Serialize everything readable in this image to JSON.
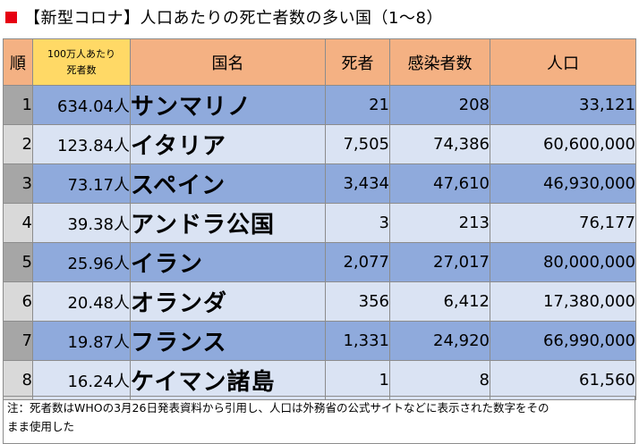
{
  "title": "【新型コロナ】人口あたりの死亡者数の多い国（1～8）",
  "colors": {
    "title_square": "#e60012",
    "header_bg": "#f4b183",
    "rate_header_bg": "#ffd966",
    "row_dark": "#8faadc",
    "row_light": "#dae3f3",
    "rank_dark": "#a6a6a6",
    "rank_light": "#d9d9d9"
  },
  "headers": {
    "rank": "順",
    "rate_line1": "100万人あたり",
    "rate_line2": "死者数",
    "country": "国名",
    "deaths": "死者",
    "infections": "感染者数",
    "population": "人口"
  },
  "rows": [
    {
      "rank": "1",
      "rate": "634.04人",
      "country": "サンマリノ",
      "deaths": "21",
      "infections": "208",
      "population": "33,121"
    },
    {
      "rank": "2",
      "rate": "123.84人",
      "country": "イタリア",
      "deaths": "7,505",
      "infections": "74,386",
      "population": "60,600,000"
    },
    {
      "rank": "3",
      "rate": "73.17人",
      "country": "スペイン",
      "deaths": "3,434",
      "infections": "47,610",
      "population": "46,930,000"
    },
    {
      "rank": "4",
      "rate": "39.38人",
      "country": "アンドラ公国",
      "deaths": "3",
      "infections": "213",
      "population": "76,177"
    },
    {
      "rank": "5",
      "rate": "25.96人",
      "country": "イラン",
      "deaths": "2,077",
      "infections": "27,017",
      "population": "80,000,000"
    },
    {
      "rank": "6",
      "rate": "20.48人",
      "country": "オランダ",
      "deaths": "356",
      "infections": "6,412",
      "population": "17,380,000"
    },
    {
      "rank": "7",
      "rate": "19.87人",
      "country": "フランス",
      "deaths": "1,331",
      "infections": "24,920",
      "population": "66,990,000"
    },
    {
      "rank": "8",
      "rate": "16.24人",
      "country": "ケイマン諸島",
      "deaths": "1",
      "infections": "8",
      "population": "61,560"
    }
  ],
  "note_line1": "注：死者数はWHOの3月26日発表資料から引用し、人口は外務省の公式サイトなどに表示された数字をその",
  "note_line2": "まま使用した"
}
